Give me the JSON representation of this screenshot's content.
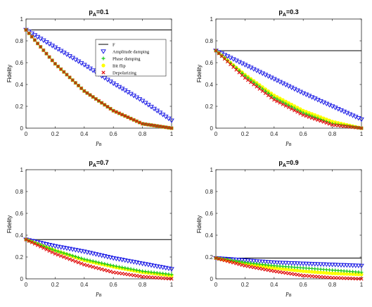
{
  "chart_data": [
    {
      "type": "line",
      "title_main": "p",
      "title_sub": "A",
      "title_value": "=0.1",
      "xlabel": "p",
      "xlabel_sub": "B",
      "ylabel": "Fidelity",
      "xlim": [
        0,
        1
      ],
      "ylim": [
        0,
        1
      ],
      "xticks": [
        "0",
        "0.2",
        "0.4",
        "0.6",
        "0.8",
        "1"
      ],
      "yticks": [
        "0",
        "0.2",
        "0.4",
        "0.6",
        "0.8",
        "1"
      ],
      "legend_position": "top-right",
      "legend": [
        "F",
        "Amplitude damping",
        "Phase damping",
        "Bit flip",
        "Depolarizing"
      ],
      "series": [
        {
          "name": "F",
          "x": [
            0,
            1
          ],
          "y": [
            0.9,
            0.9
          ]
        },
        {
          "name": "Amplitude damping",
          "x": [
            0,
            0.2,
            0.4,
            0.6,
            0.8,
            1
          ],
          "y": [
            0.9,
            0.74,
            0.58,
            0.41,
            0.25,
            0.07
          ]
        },
        {
          "name": "Phase damping",
          "x": [
            0,
            0.2,
            0.4,
            0.6,
            0.8,
            1
          ],
          "y": [
            0.9,
            0.59,
            0.34,
            0.16,
            0.04,
            0.0
          ]
        },
        {
          "name": "Bit flip",
          "x": [
            0,
            0.2,
            0.4,
            0.6,
            0.8,
            1
          ],
          "y": [
            0.9,
            0.59,
            0.34,
            0.16,
            0.04,
            0.0
          ]
        },
        {
          "name": "Depolarizing",
          "x": [
            0,
            0.2,
            0.4,
            0.6,
            0.8,
            1
          ],
          "y": [
            0.9,
            0.59,
            0.34,
            0.16,
            0.04,
            0.0
          ]
        }
      ]
    },
    {
      "type": "line",
      "title_main": "p",
      "title_sub": "A",
      "title_value": "=0.3",
      "xlabel": "p",
      "xlabel_sub": "B",
      "ylabel": "Fidelity",
      "xlim": [
        0,
        1
      ],
      "ylim": [
        0,
        1
      ],
      "xticks": [
        "0",
        "0.2",
        "0.4",
        "0.6",
        "0.8",
        "1"
      ],
      "yticks": [
        "0",
        "0.2",
        "0.4",
        "0.6",
        "0.8",
        "1"
      ],
      "series": [
        {
          "name": "F",
          "x": [
            0,
            1
          ],
          "y": [
            0.71,
            0.71
          ]
        },
        {
          "name": "Amplitude damping",
          "x": [
            0,
            0.2,
            0.4,
            0.6,
            0.8,
            1
          ],
          "y": [
            0.71,
            0.58,
            0.45,
            0.32,
            0.2,
            0.08
          ]
        },
        {
          "name": "Phase damping",
          "x": [
            0,
            0.2,
            0.4,
            0.6,
            0.8,
            1
          ],
          "y": [
            0.71,
            0.48,
            0.28,
            0.14,
            0.04,
            0.0
          ]
        },
        {
          "name": "Bit flip",
          "x": [
            0,
            0.2,
            0.4,
            0.6,
            0.8,
            1
          ],
          "y": [
            0.71,
            0.49,
            0.3,
            0.16,
            0.06,
            0.0
          ]
        },
        {
          "name": "Depolarizing",
          "x": [
            0,
            0.2,
            0.4,
            0.6,
            0.8,
            1
          ],
          "y": [
            0.71,
            0.46,
            0.26,
            0.12,
            0.03,
            0.0
          ]
        }
      ]
    },
    {
      "type": "line",
      "title_main": "p",
      "title_sub": "A",
      "title_value": "=0.7",
      "xlabel": "p",
      "xlabel_sub": "B",
      "ylabel": "Fidelity",
      "xlim": [
        0,
        1
      ],
      "ylim": [
        0,
        1
      ],
      "xticks": [
        "0",
        "0.2",
        "0.4",
        "0.6",
        "0.8",
        "1"
      ],
      "yticks": [
        "0",
        "0.2",
        "0.4",
        "0.6",
        "0.8",
        "1"
      ],
      "series": [
        {
          "name": "F",
          "x": [
            0,
            1
          ],
          "y": [
            0.36,
            0.36
          ]
        },
        {
          "name": "Amplitude damping",
          "x": [
            0,
            0.2,
            0.4,
            0.6,
            0.8,
            1
          ],
          "y": [
            0.36,
            0.3,
            0.25,
            0.19,
            0.14,
            0.09
          ]
        },
        {
          "name": "Phase damping",
          "x": [
            0,
            0.2,
            0.4,
            0.6,
            0.8,
            1
          ],
          "y": [
            0.36,
            0.26,
            0.18,
            0.12,
            0.07,
            0.04
          ]
        },
        {
          "name": "Bit flip",
          "x": [
            0,
            0.2,
            0.4,
            0.6,
            0.8,
            1
          ],
          "y": [
            0.36,
            0.26,
            0.17,
            0.11,
            0.06,
            0.03
          ]
        },
        {
          "name": "Depolarizing",
          "x": [
            0,
            0.2,
            0.4,
            0.6,
            0.8,
            1
          ],
          "y": [
            0.36,
            0.23,
            0.13,
            0.06,
            0.02,
            0.0
          ]
        }
      ]
    },
    {
      "type": "line",
      "title_main": "p",
      "title_sub": "A",
      "title_value": "=0.9",
      "xlabel": "p",
      "xlabel_sub": "B",
      "ylabel": "Fidelity",
      "xlim": [
        0,
        1
      ],
      "ylim": [
        0,
        1
      ],
      "xticks": [
        "0",
        "0.2",
        "0.4",
        "0.6",
        "0.8",
        "1"
      ],
      "yticks": [
        "0",
        "0.2",
        "0.4",
        "0.6",
        "0.8",
        "1"
      ],
      "series": [
        {
          "name": "F",
          "x": [
            0,
            1
          ],
          "y": [
            0.19,
            0.19
          ]
        },
        {
          "name": "Amplitude damping",
          "x": [
            0,
            0.2,
            0.4,
            0.6,
            0.8,
            1
          ],
          "y": [
            0.19,
            0.17,
            0.15,
            0.14,
            0.13,
            0.12
          ]
        },
        {
          "name": "Phase damping",
          "x": [
            0,
            0.2,
            0.4,
            0.6,
            0.8,
            1
          ],
          "y": [
            0.19,
            0.15,
            0.12,
            0.1,
            0.08,
            0.06
          ]
        },
        {
          "name": "Bit flip",
          "x": [
            0,
            0.2,
            0.4,
            0.6,
            0.8,
            1
          ],
          "y": [
            0.19,
            0.14,
            0.1,
            0.07,
            0.05,
            0.04
          ]
        },
        {
          "name": "Depolarizing",
          "x": [
            0,
            0.2,
            0.4,
            0.6,
            0.8,
            1
          ],
          "y": [
            0.19,
            0.12,
            0.07,
            0.03,
            0.01,
            0.0
          ]
        }
      ]
    }
  ],
  "style": {
    "F_color": "#000000",
    "amplitude_color": "#1f1fe6",
    "phase_color": "#17c817",
    "bitflip_color": "#ffff00",
    "depolarizing_color": "#e01010",
    "amplitude_marker": "triangle-down",
    "phase_marker": "plus",
    "bitflip_marker": "dot",
    "depolarizing_marker": "cross"
  }
}
